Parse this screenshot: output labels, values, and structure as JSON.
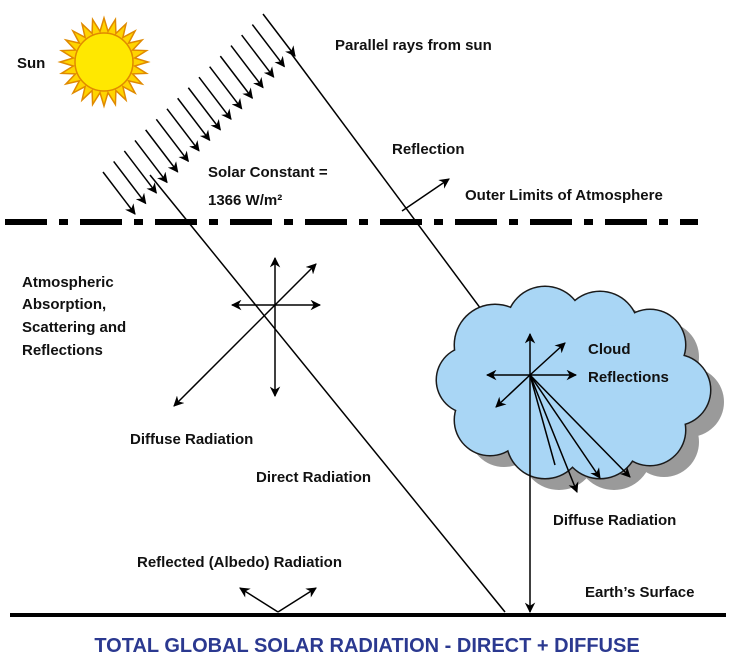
{
  "labels": {
    "sun": "Sun",
    "parallel_rays": "Parallel rays from sun",
    "reflection": "Reflection",
    "solar_constant": [
      "Solar Constant =",
      "1366 W/m²"
    ],
    "outer_limits": "Outer Limits of Atmosphere",
    "atmospheric": [
      "Atmospheric",
      "Absorption,",
      "Scattering and",
      "Reflections"
    ],
    "cloud": [
      "Cloud",
      "Reflections"
    ],
    "diffuse_left": "Diffuse Radiation",
    "direct": "Direct Radiation",
    "diffuse_right": "Diffuse Radiation",
    "albedo": "Reflected (Albedo) Radiation",
    "surface": "Earth’s Surface"
  },
  "footer": {
    "title": "TOTAL GLOBAL SOLAR RADIATION - DIRECT + DIFFUSE"
  }
}
